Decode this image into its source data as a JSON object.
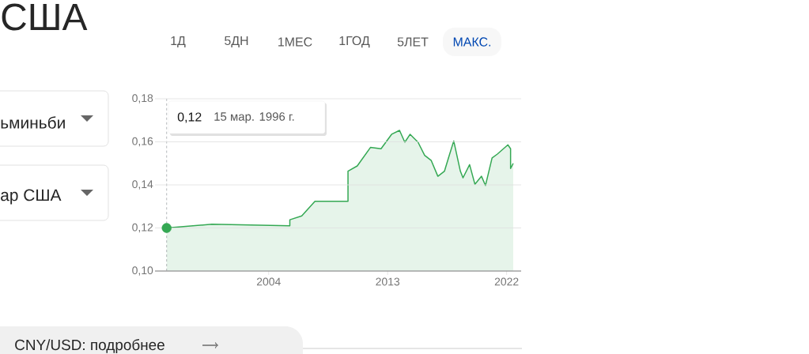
{
  "chart_data": {
    "type": "area",
    "title": "США",
    "x": [
      1996.28,
      1999.7,
      2005.6,
      2005.6,
      2006.5,
      2007.5,
      2010.0,
      2010.0,
      2010.7,
      2011.7,
      2012.5,
      2013.3,
      2013.9,
      2014.3,
      2014.7,
      2015.3,
      2015.8,
      2016.3,
      2016.8,
      2017.3,
      2017.6,
      2018.0,
      2018.5,
      2018.7,
      2019.2,
      2019.6,
      2020.1,
      2020.4,
      2020.9,
      2021.3,
      2022.1,
      2022.3,
      2022.3,
      2022.5
    ],
    "series": [
      {
        "color": "#34a853",
        "values": [
          0.12,
          0.1217,
          0.121,
          0.1238,
          0.1256,
          0.1324,
          0.1324,
          0.1464,
          0.1488,
          0.1574,
          0.1568,
          0.1635,
          0.1653,
          0.1598,
          0.1635,
          0.1598,
          0.1537,
          0.1513,
          0.144,
          0.1464,
          0.1525,
          0.1604,
          0.1464,
          0.1433,
          0.1494,
          0.1403,
          0.144,
          0.1397,
          0.1525,
          0.1543,
          0.1586,
          0.1568,
          0.1476,
          0.15
        ]
      },
      {
        "type": "scatter",
        "marker": "circle",
        "color": "#34a853",
        "x": [
          1996.28
        ],
        "values": [
          0.12
        ]
      }
    ],
    "xlim": [
      1995.4,
      2023.1
    ],
    "xticks": [
      2004,
      2013,
      2022
    ],
    "ylim": [
      0.1,
      0.18
    ],
    "yticks": [
      {
        "value": 0.1,
        "label": "0,10"
      },
      {
        "value": 0.12,
        "label": "0,12"
      },
      {
        "value": 0.14,
        "label": "0,14"
      },
      {
        "value": 0.16,
        "label": "0,16"
      },
      {
        "value": 0.18,
        "label": "0,18"
      }
    ],
    "grid": "y",
    "ref_lines": [
      {
        "axis": "x",
        "value": 1996.28,
        "line_style": "dashed",
        "color": "#80868b"
      }
    ],
    "annotations": [
      "0,12",
      "15 мар. 1996 г.",
      "ьминьби",
      "ар США",
      "1Д",
      "5ДН",
      "1МЕС",
      "1ГОД",
      "5ЛЕТ",
      "МАКС.",
      "CNY/USD: подробнее"
    ]
  }
}
